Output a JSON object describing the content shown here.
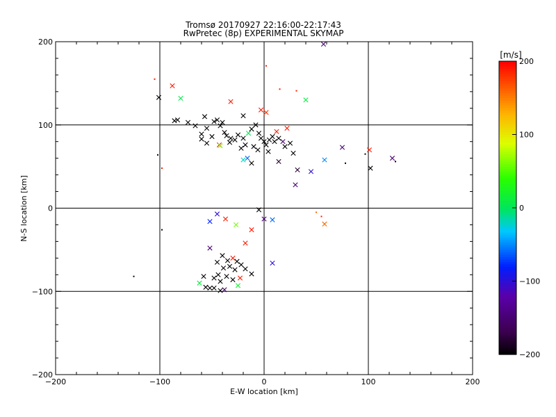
{
  "chart_data": {
    "type": "scatter",
    "title": "Tromsø 20170927 22:16:00-22:17:43",
    "subtitle": "RwPretec (8p) EXPERIMENTAL SKYMAP",
    "xlabel": "E-W location [km]",
    "ylabel": "N-S location [km]",
    "xlim": [
      -200,
      200
    ],
    "ylim": [
      -200,
      200
    ],
    "x_ticks": [
      -200,
      -100,
      0,
      100,
      200
    ],
    "y_ticks": [
      -200,
      -100,
      0,
      100,
      200
    ],
    "grid": true,
    "colorbar": {
      "label": "[m/s]",
      "range": [
        -200,
        200
      ],
      "ticks": [
        -200,
        -100,
        0,
        100,
        200
      ],
      "colormap": "rainbow (black-purple-blue-cyan-green-yellow-red)"
    },
    "markers": [
      {
        "x": 57,
        "y": 197,
        "v": -150,
        "m": "x"
      },
      {
        "x": -88,
        "y": 147,
        "v": 190,
        "m": "x"
      },
      {
        "x": -105,
        "y": 155,
        "v": 190,
        "m": "."
      },
      {
        "x": 2,
        "y": 171,
        "v": 190,
        "m": "."
      },
      {
        "x": -101,
        "y": 133,
        "v": -200,
        "m": "x"
      },
      {
        "x": -80,
        "y": 132,
        "v": 5,
        "m": "x"
      },
      {
        "x": -32,
        "y": 128,
        "v": 190,
        "m": "x"
      },
      {
        "x": 40,
        "y": 130,
        "v": 10,
        "m": "x"
      },
      {
        "x": 15,
        "y": 143,
        "v": 190,
        "m": "."
      },
      {
        "x": 31,
        "y": 141,
        "v": 190,
        "m": "."
      },
      {
        "x": -3,
        "y": 118,
        "v": 190,
        "m": "x"
      },
      {
        "x": 2,
        "y": 115,
        "v": 180,
        "m": "x"
      },
      {
        "x": -20,
        "y": 111,
        "v": -200,
        "m": "x"
      },
      {
        "x": -83,
        "y": 106,
        "v": -200,
        "m": "x"
      },
      {
        "x": -86,
        "y": 105,
        "v": -200,
        "m": "x"
      },
      {
        "x": -73,
        "y": 103,
        "v": -200,
        "m": "x"
      },
      {
        "x": -57,
        "y": 110,
        "v": -200,
        "m": "x"
      },
      {
        "x": -48,
        "y": 104,
        "v": -200,
        "m": "x"
      },
      {
        "x": -45,
        "y": 106,
        "v": -200,
        "m": "x"
      },
      {
        "x": -40,
        "y": 103,
        "v": -200,
        "m": "x"
      },
      {
        "x": -42,
        "y": 99,
        "v": -200,
        "m": "x"
      },
      {
        "x": -55,
        "y": 96,
        "v": -200,
        "m": "x"
      },
      {
        "x": -66,
        "y": 99,
        "v": -200,
        "m": "x"
      },
      {
        "x": -60,
        "y": 89,
        "v": -200,
        "m": "x"
      },
      {
        "x": -50,
        "y": 86,
        "v": -200,
        "m": "x"
      },
      {
        "x": -38,
        "y": 91,
        "v": -200,
        "m": "x"
      },
      {
        "x": -36,
        "y": 87,
        "v": -200,
        "m": "x"
      },
      {
        "x": -32,
        "y": 84,
        "v": -200,
        "m": "x"
      },
      {
        "x": -28,
        "y": 82,
        "v": -200,
        "m": "x"
      },
      {
        "x": -25,
        "y": 88,
        "v": -200,
        "m": "x"
      },
      {
        "x": -60,
        "y": 83,
        "v": -200,
        "m": "x"
      },
      {
        "x": -43,
        "y": 76,
        "v": 190,
        "m": "x"
      },
      {
        "x": -42,
        "y": 75,
        "v": 60,
        "m": "x"
      },
      {
        "x": -55,
        "y": 78,
        "v": -200,
        "m": "x"
      },
      {
        "x": -33,
        "y": 79,
        "v": -200,
        "m": "x"
      },
      {
        "x": -20,
        "y": 84,
        "v": -200,
        "m": "x"
      },
      {
        "x": -15,
        "y": 90,
        "v": 5,
        "m": "x"
      },
      {
        "x": -12,
        "y": 95,
        "v": -200,
        "m": "x"
      },
      {
        "x": -8,
        "y": 100,
        "v": -200,
        "m": "x"
      },
      {
        "x": -5,
        "y": 90,
        "v": -200,
        "m": "x"
      },
      {
        "x": -3,
        "y": 84,
        "v": -200,
        "m": "x"
      },
      {
        "x": 0,
        "y": 80,
        "v": -200,
        "m": "x"
      },
      {
        "x": 2,
        "y": 76,
        "v": -200,
        "m": "x"
      },
      {
        "x": 5,
        "y": 82,
        "v": -200,
        "m": "x"
      },
      {
        "x": 8,
        "y": 86,
        "v": -200,
        "m": "x"
      },
      {
        "x": 10,
        "y": 80,
        "v": -200,
        "m": "x"
      },
      {
        "x": 12,
        "y": 92,
        "v": 190,
        "m": "x"
      },
      {
        "x": 14,
        "y": 84,
        "v": -200,
        "m": "x"
      },
      {
        "x": 18,
        "y": 80,
        "v": -150,
        "m": "x"
      },
      {
        "x": 22,
        "y": 96,
        "v": 190,
        "m": "x"
      },
      {
        "x": 20,
        "y": 74,
        "v": -200,
        "m": "x"
      },
      {
        "x": 25,
        "y": 78,
        "v": -200,
        "m": "x"
      },
      {
        "x": -6,
        "y": 70,
        "v": -200,
        "m": "x"
      },
      {
        "x": -10,
        "y": 74,
        "v": -200,
        "m": "x"
      },
      {
        "x": -18,
        "y": 76,
        "v": -200,
        "m": "x"
      },
      {
        "x": -22,
        "y": 72,
        "v": -200,
        "m": "x"
      },
      {
        "x": 28,
        "y": 66,
        "v": -200,
        "m": "x"
      },
      {
        "x": 4,
        "y": 68,
        "v": -200,
        "m": "x"
      },
      {
        "x": -16,
        "y": 60,
        "v": -60,
        "m": "x"
      },
      {
        "x": -20,
        "y": 58,
        "v": -20,
        "m": "x"
      },
      {
        "x": -12,
        "y": 54,
        "v": -200,
        "m": "x"
      },
      {
        "x": 14,
        "y": 56,
        "v": -180,
        "m": "x"
      },
      {
        "x": 32,
        "y": 46,
        "v": -180,
        "m": "x"
      },
      {
        "x": 45,
        "y": 44,
        "v": -100,
        "m": "x"
      },
      {
        "x": 58,
        "y": 58,
        "v": -50,
        "m": "x"
      },
      {
        "x": 75,
        "y": 73,
        "v": -150,
        "m": "x"
      },
      {
        "x": 101,
        "y": 70,
        "v": 190,
        "m": "x"
      },
      {
        "x": 102,
        "y": 48,
        "v": -200,
        "m": "x"
      },
      {
        "x": 123,
        "y": 60,
        "v": -150,
        "m": "x"
      },
      {
        "x": 30,
        "y": 28,
        "v": -150,
        "m": "x"
      },
      {
        "x": 58,
        "y": -19,
        "v": 160,
        "m": "x"
      },
      {
        "x": -45,
        "y": -7,
        "v": -100,
        "m": "x"
      },
      {
        "x": -52,
        "y": -16,
        "v": -80,
        "m": "x"
      },
      {
        "x": -37,
        "y": -13,
        "v": 190,
        "m": "x"
      },
      {
        "x": -27,
        "y": -20,
        "v": 60,
        "m": "x"
      },
      {
        "x": -18,
        "y": -42,
        "v": 190,
        "m": "x"
      },
      {
        "x": -12,
        "y": -26,
        "v": 190,
        "m": "x"
      },
      {
        "x": -5,
        "y": -2,
        "v": -200,
        "m": "x"
      },
      {
        "x": 0,
        "y": -13,
        "v": -150,
        "m": "x"
      },
      {
        "x": 8,
        "y": -14,
        "v": -60,
        "m": "x"
      },
      {
        "x": -52,
        "y": -48,
        "v": -150,
        "m": "x"
      },
      {
        "x": -40,
        "y": -57,
        "v": -200,
        "m": "x"
      },
      {
        "x": -45,
        "y": -65,
        "v": -200,
        "m": "x"
      },
      {
        "x": -35,
        "y": -63,
        "v": -200,
        "m": "x"
      },
      {
        "x": -30,
        "y": -60,
        "v": 190,
        "m": "x"
      },
      {
        "x": -26,
        "y": -64,
        "v": -200,
        "m": "x"
      },
      {
        "x": -33,
        "y": -70,
        "v": -200,
        "m": "x"
      },
      {
        "x": -39,
        "y": -72,
        "v": -200,
        "m": "x"
      },
      {
        "x": -28,
        "y": -74,
        "v": -200,
        "m": "x"
      },
      {
        "x": -22,
        "y": -68,
        "v": -200,
        "m": "x"
      },
      {
        "x": -18,
        "y": -73,
        "v": -200,
        "m": "x"
      },
      {
        "x": -44,
        "y": -80,
        "v": -200,
        "m": "x"
      },
      {
        "x": -36,
        "y": -82,
        "v": -200,
        "m": "x"
      },
      {
        "x": -30,
        "y": -86,
        "v": -200,
        "m": "x"
      },
      {
        "x": -48,
        "y": -84,
        "v": -200,
        "m": "x"
      },
      {
        "x": -42,
        "y": -88,
        "v": -200,
        "m": "x"
      },
      {
        "x": -23,
        "y": -84,
        "v": 190,
        "m": "x"
      },
      {
        "x": -12,
        "y": -79,
        "v": -200,
        "m": "x"
      },
      {
        "x": 8,
        "y": -66,
        "v": -100,
        "m": "x"
      },
      {
        "x": -58,
        "y": -82,
        "v": -200,
        "m": "x"
      },
      {
        "x": -62,
        "y": -90,
        "v": 10,
        "m": "x"
      },
      {
        "x": -56,
        "y": -95,
        "v": -200,
        "m": "x"
      },
      {
        "x": -52,
        "y": -96,
        "v": -200,
        "m": "x"
      },
      {
        "x": -48,
        "y": -96,
        "v": -200,
        "m": "x"
      },
      {
        "x": -42,
        "y": -99,
        "v": -200,
        "m": "x"
      },
      {
        "x": -38,
        "y": -98,
        "v": -150,
        "m": "x"
      },
      {
        "x": -25,
        "y": -93,
        "v": 20,
        "m": "x"
      },
      {
        "x": -125,
        "y": -82,
        "v": -200,
        "m": "."
      },
      {
        "x": -98,
        "y": -26,
        "v": -200,
        "m": "."
      },
      {
        "x": -102,
        "y": 64,
        "v": -200,
        "m": "."
      },
      {
        "x": -98,
        "y": 48,
        "v": 190,
        "m": "."
      },
      {
        "x": 97,
        "y": 65,
        "v": -200,
        "m": "."
      },
      {
        "x": 78,
        "y": 54,
        "v": -200,
        "m": "."
      },
      {
        "x": 126,
        "y": 56,
        "v": -200,
        "m": "."
      },
      {
        "x": 55,
        "y": -10,
        "v": 190,
        "m": "."
      },
      {
        "x": 50,
        "y": -5,
        "v": 160,
        "m": "."
      }
    ]
  }
}
